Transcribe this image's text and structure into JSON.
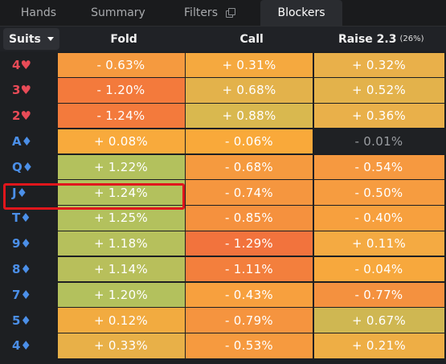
{
  "tabs": [
    {
      "label": "Hands",
      "active": false
    },
    {
      "label": "Summary",
      "active": false
    },
    {
      "label": "Filters",
      "active": false,
      "icon": "copy-icon"
    },
    {
      "label": "Blockers",
      "active": true
    }
  ],
  "header": {
    "suits_label": "Suits",
    "fold_label": "Fold",
    "call_label": "Call",
    "raise_label": "Raise 2.3",
    "raise_pct": "(26%)"
  },
  "rows": [
    {
      "rank": "4",
      "suit": "♥",
      "color": "red",
      "fold": "- 0.63%",
      "call": "+ 0.31%",
      "raise": "+ 0.32%",
      "fold_bg": "#f59a3f",
      "call_bg": "#f5a93f",
      "raise_bg": "#e9b04a"
    },
    {
      "rank": "3",
      "suit": "♥",
      "color": "red",
      "fold": "- 1.20%",
      "call": "+ 0.68%",
      "raise": "+ 0.52%",
      "fold_bg": "#f37a3c",
      "call_bg": "#e3b24b",
      "raise_bg": "#e3b24b"
    },
    {
      "rank": "2",
      "suit": "♥",
      "color": "red",
      "fold": "- 1.24%",
      "call": "+ 0.88%",
      "raise": "+ 0.36%",
      "fold_bg": "#f37a3c",
      "call_bg": "#d9b84f",
      "raise_bg": "#e9b04a"
    },
    {
      "rank": "A",
      "suit": "♦",
      "color": "blue",
      "fold": "+ 0.08%",
      "call": "- 0.06%",
      "raise": "- 0.01%",
      "fold_bg": "#f8aa3c",
      "call_bg": "#f9a93a",
      "raise_bg": "#1f2124"
    },
    {
      "rank": "Q",
      "suit": "♦",
      "color": "blue",
      "fold": "+ 1.22%",
      "call": "- 0.68%",
      "raise": "- 0.54%",
      "fold_bg": "#b3c15d",
      "call_bg": "#f59a3f",
      "raise_bg": "#f69940"
    },
    {
      "rank": "J",
      "suit": "♦",
      "color": "blue",
      "fold": "+ 1.24%",
      "call": "- 0.74%",
      "raise": "- 0.50%",
      "fold_bg": "#b3c15d",
      "call_bg": "#f5963f",
      "raise_bg": "#f69c40"
    },
    {
      "rank": "T",
      "suit": "♦",
      "color": "blue",
      "fold": "+ 1.25%",
      "call": "- 0.85%",
      "raise": "- 0.40%",
      "fold_bg": "#b3c15d",
      "call_bg": "#f5913e",
      "raise_bg": "#f7a03e"
    },
    {
      "rank": "9",
      "suit": "♦",
      "color": "blue",
      "fold": "+ 1.18%",
      "call": "- 1.29%",
      "raise": "+ 0.11%",
      "fold_bg": "#b6c05c",
      "call_bg": "#f2733d",
      "raise_bg": "#f4aa42"
    },
    {
      "rank": "8",
      "suit": "♦",
      "color": "blue",
      "fold": "+ 1.14%",
      "call": "- 1.11%",
      "raise": "- 0.04%",
      "fold_bg": "#b8bf5b",
      "call_bg": "#f37f3d",
      "raise_bg": "#f7a83d"
    },
    {
      "rank": "7",
      "suit": "♦",
      "color": "blue",
      "fold": "+ 1.20%",
      "call": "- 0.43%",
      "raise": "- 0.77%",
      "fold_bg": "#b3c15d",
      "call_bg": "#f7a03e",
      "raise_bg": "#f4913f"
    },
    {
      "rank": "5",
      "suit": "♦",
      "color": "blue",
      "fold": "+ 0.12%",
      "call": "- 0.79%",
      "raise": "+ 0.67%",
      "fold_bg": "#f2ab40",
      "call_bg": "#f5943f",
      "raise_bg": "#cfb752"
    },
    {
      "rank": "4",
      "suit": "♦",
      "color": "blue",
      "fold": "+ 0.33%",
      "call": "- 0.53%",
      "raise": "+ 0.21%",
      "fold_bg": "#e8b048",
      "call_bg": "#f69a3f",
      "raise_bg": "#eeae45"
    }
  ],
  "highlighted_row": "J♦"
}
